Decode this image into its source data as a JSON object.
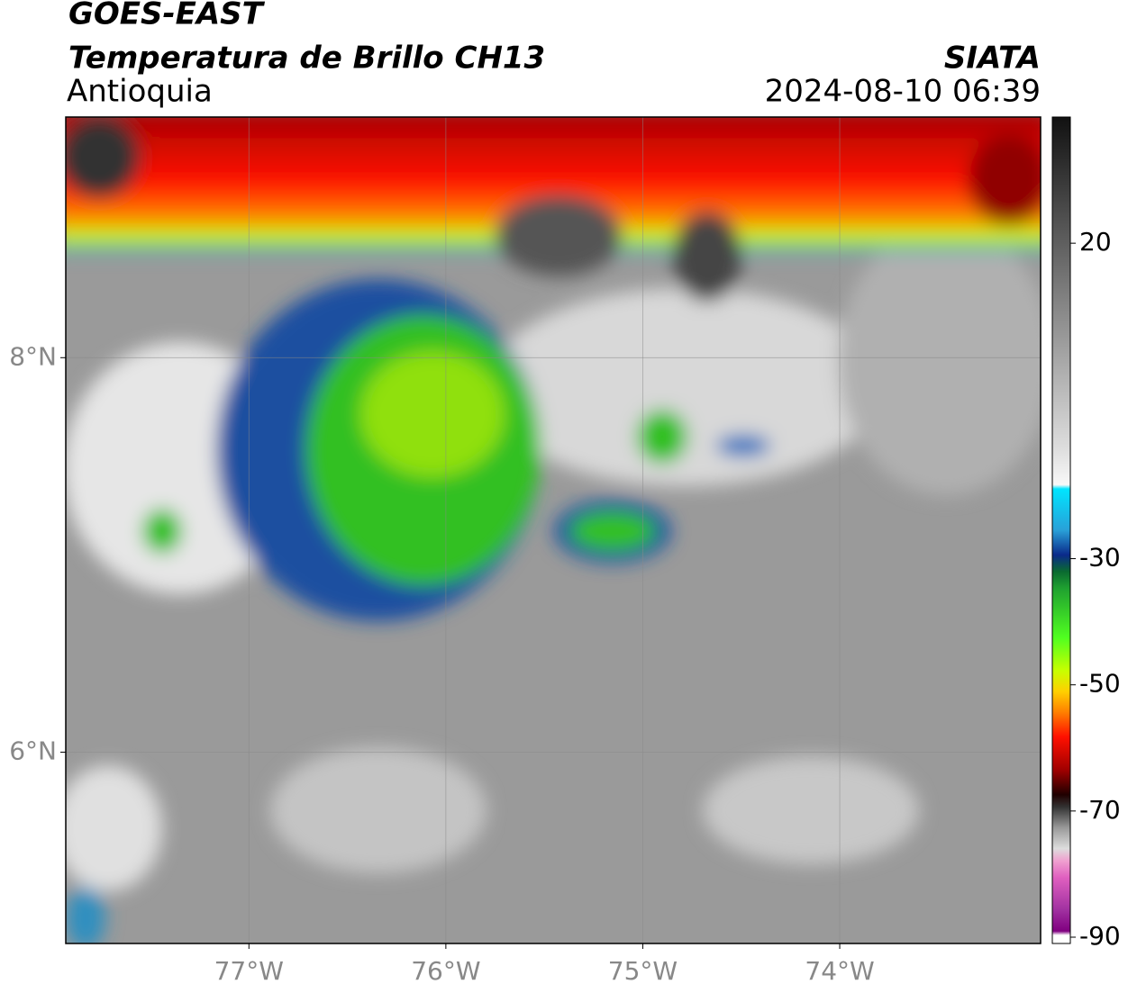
{
  "header": {
    "satellite": "GOES-EAST",
    "product": "Temperatura de Brillo CH13",
    "region": "Antioquia",
    "source": "SIATA",
    "datetime": "2024-08-10 06:39"
  },
  "map": {
    "type": "map",
    "xlim": [
      -77.93,
      -72.98
    ],
    "ylim": [
      5.03,
      9.22
    ],
    "xticks": [
      {
        "value": -77,
        "label": "77°W"
      },
      {
        "value": -76,
        "label": "76°W"
      },
      {
        "value": -75,
        "label": "75°W"
      },
      {
        "value": -74,
        "label": "74°W"
      }
    ],
    "yticks": [
      {
        "value": 8,
        "label": "8°N"
      },
      {
        "value": 6,
        "label": "6°N"
      }
    ],
    "grid": true
  },
  "colorbar": {
    "lim": [
      -91,
      40
    ],
    "ticks": [
      20,
      -30,
      -50,
      -70,
      -90
    ]
  }
}
